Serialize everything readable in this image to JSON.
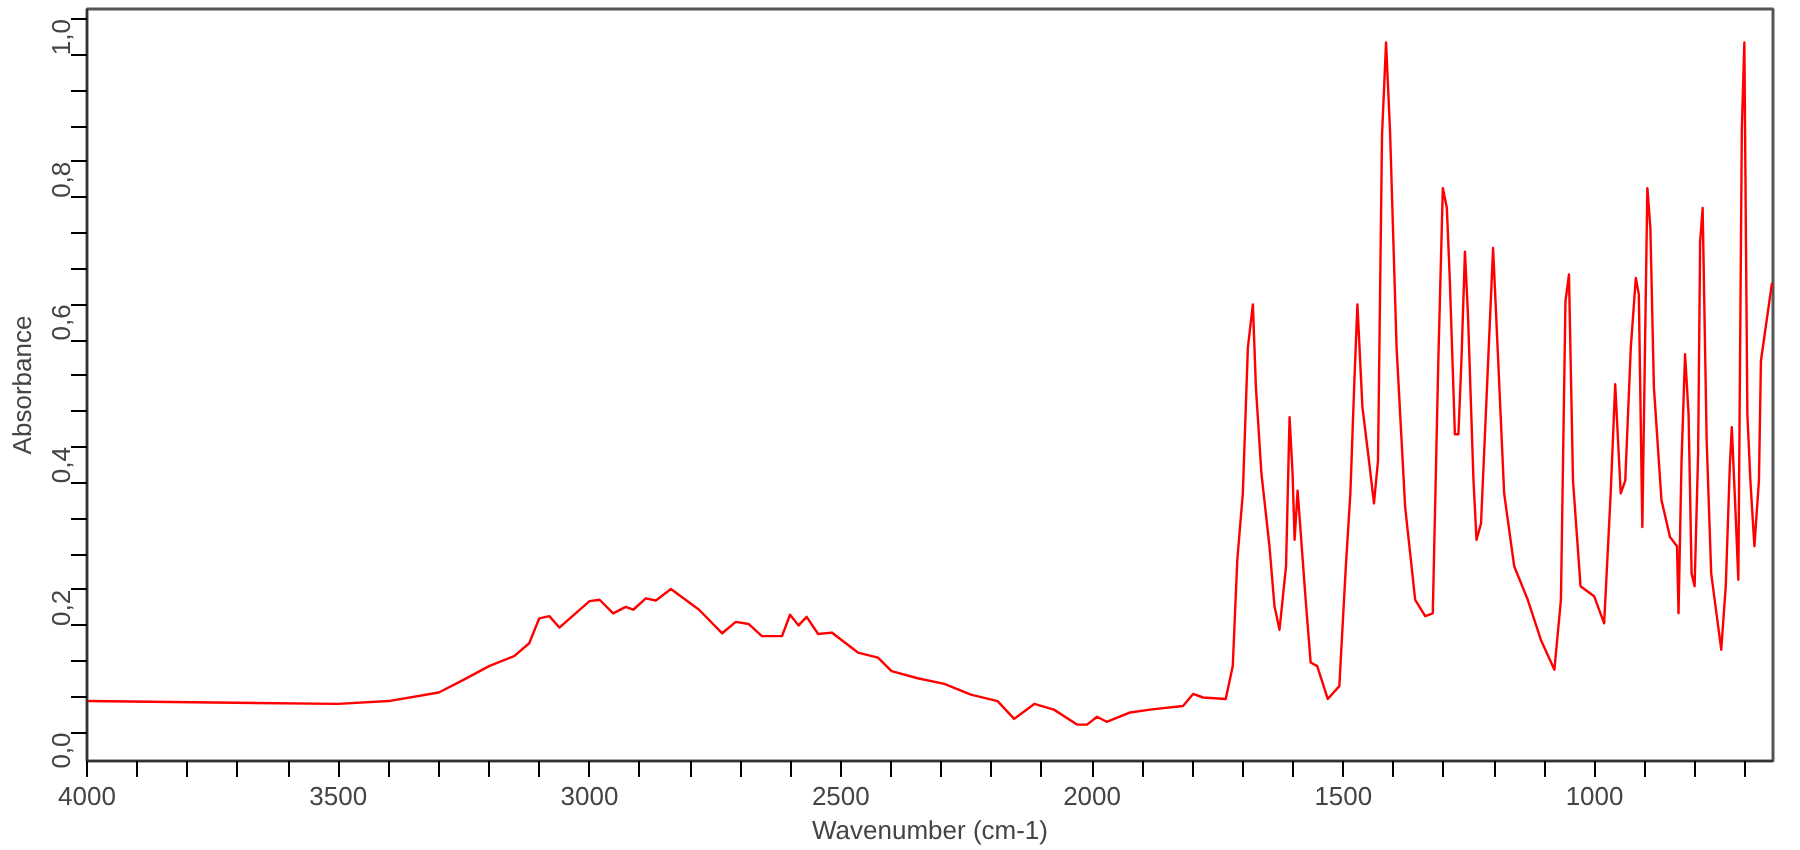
{
  "chart_data": {
    "type": "line",
    "xlabel": "Wavenumber (cm-1)",
    "ylabel": "Absorbance",
    "xlim": [
      4000,
      645
    ],
    "ylim": [
      -0.04,
      1.014
    ],
    "xticks": [
      4000,
      {
        "value": 3900,
        "label": null
      },
      {
        "value": 3800,
        "label": null
      },
      {
        "value": 3700,
        "label": null
      },
      {
        "value": 3600,
        "label": null
      },
      3500,
      {
        "value": 3400,
        "label": null
      },
      {
        "value": 3300,
        "label": null
      },
      {
        "value": 3200,
        "label": null
      },
      {
        "value": 3100,
        "label": null
      },
      3000,
      {
        "value": 2900,
        "label": null
      },
      {
        "value": 2800,
        "label": null
      },
      {
        "value": 2700,
        "label": null
      },
      {
        "value": 2600,
        "label": null
      },
      2500,
      {
        "value": 2400,
        "label": null
      },
      {
        "value": 2300,
        "label": null
      },
      {
        "value": 2200,
        "label": null
      },
      {
        "value": 2100,
        "label": null
      },
      2000,
      {
        "value": 1900,
        "label": null
      },
      {
        "value": 1800,
        "label": null
      },
      {
        "value": 1700,
        "label": null
      },
      {
        "value": 1600,
        "label": null
      },
      1500,
      {
        "value": 1400,
        "label": null
      },
      {
        "value": 1300,
        "label": null
      },
      {
        "value": 1200,
        "label": null
      },
      {
        "value": 1100,
        "label": null
      },
      1000,
      {
        "value": 900,
        "label": null
      },
      {
        "value": 800,
        "label": null
      },
      {
        "value": 700,
        "label": null
      }
    ],
    "yticks": [
      {
        "value": 0,
        "label": "0,0"
      },
      {
        "value": 0.05,
        "label": null
      },
      {
        "value": 0.1,
        "label": null
      },
      {
        "value": 0.15,
        "label": null
      },
      {
        "value": 0.2,
        "label": "0,2"
      },
      {
        "value": 0.25,
        "label": null
      },
      {
        "value": 0.3,
        "label": null
      },
      {
        "value": 0.35,
        "label": null
      },
      {
        "value": 0.4,
        "label": "0,4"
      },
      {
        "value": 0.45,
        "label": null
      },
      {
        "value": 0.5,
        "label": null
      },
      {
        "value": 0.55,
        "label": null
      },
      {
        "value": 0.6,
        "label": "0,6"
      },
      {
        "value": 0.65,
        "label": null
      },
      {
        "value": 0.7,
        "label": null
      },
      {
        "value": 0.75,
        "label": null
      },
      {
        "value": 0.8,
        "label": "0,8"
      },
      {
        "value": 0.85,
        "label": null
      },
      {
        "value": 0.9,
        "label": null
      },
      {
        "value": 0.95,
        "label": null
      },
      {
        "value": 1.0,
        "label": "1,0"
      }
    ],
    "grid": false,
    "marker": "none",
    "line_style": "solid",
    "series": [
      {
        "color": "#ff0000",
        "x": [
          4000,
          3500,
          3400,
          3300,
          3250,
          3200,
          3150,
          3120,
          3100,
          3080,
          3060,
          3000,
          2980,
          2953,
          2928,
          2913,
          2888,
          2868,
          2838,
          2782,
          2736,
          2709,
          2683,
          2657,
          2617,
          2601,
          2584,
          2568,
          2545,
          2518,
          2466,
          2426,
          2399,
          2347,
          2294,
          2241,
          2188,
          2155,
          2115,
          2076,
          2030,
          2010,
          1990,
          1971,
          1924,
          1885,
          1819,
          1799,
          1779,
          1734,
          1720,
          1711,
          1700,
          1690,
          1680,
          1674,
          1663,
          1647,
          1637,
          1627,
          1614,
          1607,
          1601,
          1597,
          1591,
          1575,
          1565,
          1552,
          1531,
          1508,
          1495,
          1486,
          1478,
          1472,
          1462,
          1449,
          1439,
          1431,
          1423,
          1415,
          1407,
          1394,
          1377,
          1357,
          1337,
          1322,
          1311,
          1302,
          1294,
          1288,
          1278,
          1271,
          1265,
          1258,
          1252,
          1241,
          1235,
          1226,
          1217,
          1202,
          1193,
          1180,
          1160,
          1133,
          1107,
          1080,
          1067,
          1058,
          1051,
          1043,
          1028,
          1001,
          981,
          968,
          959,
          948,
          939,
          928,
          918,
          912,
          905,
          895,
          889,
          882,
          867,
          850,
          836,
          833,
          827,
          820,
          813,
          807,
          801,
          794,
          790,
          785,
          777,
          768,
          748,
          739,
          731,
          727,
          720,
          714,
          707,
          702,
          696,
          690,
          682,
          673,
          669,
          647
        ],
        "values": [
          0.044,
          0.04,
          0.044,
          0.056,
          0.074,
          0.093,
          0.107,
          0.125,
          0.16,
          0.163,
          0.147,
          0.184,
          0.186,
          0.167,
          0.176,
          0.172,
          0.188,
          0.185,
          0.201,
          0.172,
          0.139,
          0.155,
          0.152,
          0.135,
          0.135,
          0.165,
          0.15,
          0.162,
          0.138,
          0.14,
          0.112,
          0.105,
          0.086,
          0.076,
          0.068,
          0.053,
          0.044,
          0.019,
          0.04,
          0.032,
          0.011,
          0.011,
          0.022,
          0.015,
          0.028,
          0.032,
          0.037,
          0.054,
          0.049,
          0.047,
          0.093,
          0.242,
          0.335,
          0.539,
          0.6,
          0.484,
          0.363,
          0.261,
          0.177,
          0.144,
          0.233,
          0.442,
          0.363,
          0.27,
          0.339,
          0.186,
          0.098,
          0.093,
          0.047,
          0.065,
          0.233,
          0.335,
          0.493,
          0.6,
          0.456,
          0.381,
          0.321,
          0.381,
          0.837,
          0.967,
          0.842,
          0.539,
          0.316,
          0.186,
          0.163,
          0.167,
          0.521,
          0.763,
          0.735,
          0.632,
          0.418,
          0.418,
          0.521,
          0.674,
          0.586,
          0.353,
          0.27,
          0.293,
          0.437,
          0.679,
          0.539,
          0.335,
          0.233,
          0.186,
          0.13,
          0.088,
          0.186,
          0.604,
          0.642,
          0.353,
          0.205,
          0.191,
          0.153,
          0.335,
          0.488,
          0.335,
          0.353,
          0.539,
          0.637,
          0.614,
          0.288,
          0.763,
          0.707,
          0.484,
          0.326,
          0.274,
          0.261,
          0.167,
          0.381,
          0.53,
          0.446,
          0.223,
          0.205,
          0.391,
          0.688,
          0.735,
          0.409,
          0.223,
          0.116,
          0.205,
          0.372,
          0.428,
          0.316,
          0.214,
          0.846,
          0.967,
          0.446,
          0.353,
          0.261,
          0.353,
          0.521,
          0.63
        ]
      }
    ]
  }
}
